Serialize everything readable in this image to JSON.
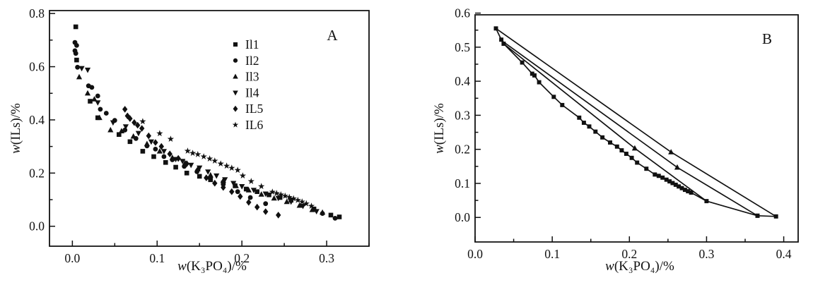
{
  "figure": {
    "background_color": "#ffffff",
    "ink_color": "#111111"
  },
  "chart_data": [
    {
      "type": "scatter",
      "panel_label": "A",
      "title": "",
      "xlabel": "w(K₃PO₄)/%",
      "ylabel": "w(ILs)/%",
      "xlim": [
        -0.027,
        0.35
      ],
      "ylim": [
        -0.075,
        0.811
      ],
      "grid": false,
      "legend_position": "upper-right-inside",
      "x_ticks": {
        "values": [
          0,
          0.1,
          0.2,
          0.3
        ],
        "labels": [
          "0.0",
          "0.1",
          "0.2",
          "0.3"
        ],
        "minor": [
          0.05,
          0.15,
          0.25,
          0.35
        ]
      },
      "y_ticks": {
        "values": [
          0,
          0.2,
          0.4,
          0.6,
          0.8
        ],
        "labels": [
          "0.0",
          "0.2",
          "0.4",
          "0.6",
          "0.8"
        ],
        "minor": [
          0.1,
          0.3,
          0.5,
          0.7
        ]
      },
      "series": [
        {
          "name": "Il1",
          "marker": "square",
          "line": false,
          "points": [
            [
              0.004,
              0.75
            ],
            [
              0.005,
              0.625
            ],
            [
              0.021,
              0.47
            ],
            [
              0.03,
              0.408
            ],
            [
              0.055,
              0.345
            ],
            [
              0.068,
              0.318
            ],
            [
              0.083,
              0.282
            ],
            [
              0.096,
              0.262
            ],
            [
              0.11,
              0.24
            ],
            [
              0.122,
              0.222
            ],
            [
              0.135,
              0.2
            ],
            [
              0.15,
              0.188
            ],
            [
              0.163,
              0.175
            ],
            [
              0.178,
              0.163
            ],
            [
              0.192,
              0.152
            ],
            [
              0.205,
              0.14
            ],
            [
              0.218,
              0.13
            ],
            [
              0.232,
              0.118
            ],
            [
              0.245,
              0.108
            ],
            [
              0.258,
              0.098
            ],
            [
              0.285,
              0.065
            ],
            [
              0.305,
              0.042
            ],
            [
              0.315,
              0.035
            ]
          ]
        },
        {
          "name": "Il2",
          "marker": "circle",
          "line": false,
          "points": [
            [
              0.003,
              0.691
            ],
            [
              0.005,
              0.68
            ],
            [
              0.003,
              0.66
            ],
            [
              0.004,
              0.65
            ],
            [
              0.006,
              0.598
            ],
            [
              0.019,
              0.528
            ],
            [
              0.023,
              0.522
            ],
            [
              0.03,
              0.49
            ],
            [
              0.033,
              0.44
            ],
            [
              0.04,
              0.425
            ],
            [
              0.05,
              0.398
            ],
            [
              0.062,
              0.362
            ],
            [
              0.075,
              0.33
            ],
            [
              0.088,
              0.302
            ],
            [
              0.098,
              0.29
            ],
            [
              0.108,
              0.262
            ],
            [
              0.118,
              0.25
            ],
            [
              0.132,
              0.225
            ],
            [
              0.147,
              0.205
            ],
            [
              0.162,
              0.182
            ],
            [
              0.178,
              0.158
            ],
            [
              0.195,
              0.13
            ],
            [
              0.21,
              0.108
            ],
            [
              0.228,
              0.085
            ],
            [
              0.295,
              0.048
            ],
            [
              0.31,
              0.03
            ]
          ]
        },
        {
          "name": "Il3",
          "marker": "triangle-up",
          "line": false,
          "points": [
            [
              0.008,
              0.561
            ],
            [
              0.018,
              0.5
            ],
            [
              0.026,
              0.478
            ],
            [
              0.032,
              0.408
            ],
            [
              0.045,
              0.362
            ],
            [
              0.058,
              0.358
            ],
            [
              0.072,
              0.338
            ],
            [
              0.088,
              0.31
            ],
            [
              0.103,
              0.282
            ],
            [
              0.118,
              0.258
            ],
            [
              0.133,
              0.238
            ],
            [
              0.148,
              0.215
            ],
            [
              0.163,
              0.192
            ],
            [
              0.178,
              0.172
            ],
            [
              0.193,
              0.152
            ],
            [
              0.208,
              0.136
            ],
            [
              0.223,
              0.12
            ],
            [
              0.238,
              0.105
            ],
            [
              0.253,
              0.092
            ],
            [
              0.268,
              0.078
            ],
            [
              0.283,
              0.062
            ],
            [
              0.295,
              0.052
            ]
          ]
        },
        {
          "name": "Il4",
          "marker": "triangle-down",
          "line": false,
          "points": [
            [
              0.011,
              0.594
            ],
            [
              0.018,
              0.588
            ],
            [
              0.03,
              0.465
            ],
            [
              0.048,
              0.39
            ],
            [
              0.063,
              0.375
            ],
            [
              0.078,
              0.35
            ],
            [
              0.093,
              0.318
            ],
            [
              0.108,
              0.282
            ],
            [
              0.122,
              0.252
            ],
            [
              0.13,
              0.245
            ],
            [
              0.14,
              0.23
            ],
            [
              0.15,
              0.22
            ],
            [
              0.16,
              0.205
            ],
            [
              0.17,
              0.19
            ],
            [
              0.18,
              0.176
            ],
            [
              0.19,
              0.162
            ],
            [
              0.2,
              0.15
            ],
            [
              0.214,
              0.136
            ],
            [
              0.228,
              0.122
            ],
            [
              0.243,
              0.106
            ],
            [
              0.258,
              0.092
            ],
            [
              0.272,
              0.076
            ],
            [
              0.288,
              0.056
            ]
          ]
        },
        {
          "name": "IL5",
          "marker": "diamond",
          "line": false,
          "points": [
            [
              0.062,
              0.44
            ],
            [
              0.065,
              0.415
            ],
            [
              0.068,
              0.405
            ],
            [
              0.073,
              0.39
            ],
            [
              0.077,
              0.38
            ],
            [
              0.082,
              0.368
            ],
            [
              0.09,
              0.34
            ],
            [
              0.098,
              0.315
            ],
            [
              0.105,
              0.3
            ],
            [
              0.115,
              0.272
            ],
            [
              0.125,
              0.255
            ],
            [
              0.135,
              0.235
            ],
            [
              0.148,
              0.212
            ],
            [
              0.158,
              0.182
            ],
            [
              0.168,
              0.162
            ],
            [
              0.178,
              0.146
            ],
            [
              0.188,
              0.13
            ],
            [
              0.198,
              0.112
            ],
            [
              0.208,
              0.09
            ],
            [
              0.218,
              0.072
            ],
            [
              0.228,
              0.055
            ],
            [
              0.243,
              0.042
            ]
          ]
        },
        {
          "name": "IL6",
          "marker": "star",
          "line": false,
          "points": [
            [
              0.083,
              0.394
            ],
            [
              0.103,
              0.349
            ],
            [
              0.116,
              0.328
            ],
            [
              0.136,
              0.283
            ],
            [
              0.142,
              0.275
            ],
            [
              0.148,
              0.27
            ],
            [
              0.155,
              0.262
            ],
            [
              0.162,
              0.254
            ],
            [
              0.168,
              0.246
            ],
            [
              0.175,
              0.235
            ],
            [
              0.182,
              0.227
            ],
            [
              0.188,
              0.219
            ],
            [
              0.195,
              0.211
            ],
            [
              0.201,
              0.19
            ],
            [
              0.211,
              0.169
            ],
            [
              0.223,
              0.15
            ],
            [
              0.236,
              0.129
            ],
            [
              0.241,
              0.124
            ],
            [
              0.246,
              0.119
            ],
            [
              0.251,
              0.114
            ],
            [
              0.256,
              0.109
            ],
            [
              0.261,
              0.104
            ],
            [
              0.266,
              0.098
            ],
            [
              0.271,
              0.092
            ],
            [
              0.276,
              0.085
            ],
            [
              0.282,
              0.076
            ]
          ]
        }
      ]
    },
    {
      "type": "line",
      "panel_label": "B",
      "title": "",
      "xlabel": "w(K₃PO₄)/%",
      "ylabel": "w(ILs)/%",
      "xlim": [
        0,
        0.4187
      ],
      "ylim": [
        -0.072,
        0.595
      ],
      "grid": false,
      "legend_position": "none",
      "x_ticks": {
        "values": [
          0,
          0.1,
          0.2,
          0.3,
          0.4
        ],
        "labels": [
          "0.0",
          "0.1",
          "0.2",
          "0.3",
          "0.4"
        ],
        "minor": [
          0.05,
          0.15,
          0.25,
          0.35
        ]
      },
      "y_ticks": {
        "values": [
          0,
          0.1,
          0.2,
          0.3,
          0.4,
          0.5,
          0.6
        ],
        "labels": [
          "0.0",
          "0.1",
          "0.2",
          "0.3",
          "0.4",
          "0.5",
          "0.6"
        ],
        "minor": [
          0.05,
          0.15,
          0.25,
          0.35,
          0.45,
          0.55
        ]
      },
      "series": [
        {
          "name": "binodal-curve",
          "marker": "square",
          "marker_scale": 0.9,
          "line": true,
          "points": [
            [
              0.027,
              0.555
            ],
            [
              0.034,
              0.522
            ],
            [
              0.037,
              0.51
            ],
            [
              0.061,
              0.455
            ],
            [
              0.074,
              0.422
            ],
            [
              0.077,
              0.417
            ],
            [
              0.083,
              0.397
            ],
            [
              0.102,
              0.354
            ],
            [
              0.113,
              0.33
            ],
            [
              0.135,
              0.293
            ],
            [
              0.141,
              0.278
            ],
            [
              0.148,
              0.267
            ],
            [
              0.156,
              0.252
            ],
            [
              0.165,
              0.235
            ],
            [
              0.175,
              0.22
            ],
            [
              0.184,
              0.208
            ],
            [
              0.19,
              0.197
            ],
            [
              0.196,
              0.187
            ],
            [
              0.203,
              0.175
            ],
            [
              0.21,
              0.161
            ],
            [
              0.222,
              0.143
            ],
            [
              0.233,
              0.126
            ],
            [
              0.238,
              0.122
            ],
            [
              0.243,
              0.117
            ],
            [
              0.248,
              0.111
            ],
            [
              0.252,
              0.106
            ],
            [
              0.256,
              0.101
            ],
            [
              0.26,
              0.096
            ],
            [
              0.264,
              0.091
            ],
            [
              0.268,
              0.086
            ],
            [
              0.272,
              0.081
            ],
            [
              0.276,
              0.077
            ],
            [
              0.28,
              0.073
            ],
            [
              0.3,
              0.048
            ],
            [
              0.366,
              0.005
            ]
          ]
        },
        {
          "name": "tie-line-1",
          "marker": "triangle-up",
          "line": true,
          "marker_indices": [
            1
          ],
          "points": [
            [
              0.027,
              0.555
            ],
            [
              0.254,
              0.192
            ],
            [
              0.39,
              0.003
            ]
          ]
        },
        {
          "name": "tie-line-2",
          "marker": "triangle-up",
          "line": true,
          "marker_indices": [
            1
          ],
          "points": [
            [
              0.034,
              0.52
            ],
            [
              0.262,
              0.147
            ],
            [
              0.366,
              0.005
            ]
          ]
        },
        {
          "name": "tie-line-3",
          "marker": "triangle-up",
          "line": true,
          "marker_indices": [
            1
          ],
          "points": [
            [
              0.037,
              0.51
            ],
            [
              0.207,
              0.203
            ],
            [
              0.3,
              0.048
            ]
          ]
        },
        {
          "name": "bottom-segment",
          "marker": "square",
          "marker_scale": 0.9,
          "line": true,
          "marker_indices": [
            0,
            1
          ],
          "points": [
            [
              0.366,
              0.005
            ],
            [
              0.39,
              0.003
            ]
          ]
        }
      ]
    }
  ]
}
